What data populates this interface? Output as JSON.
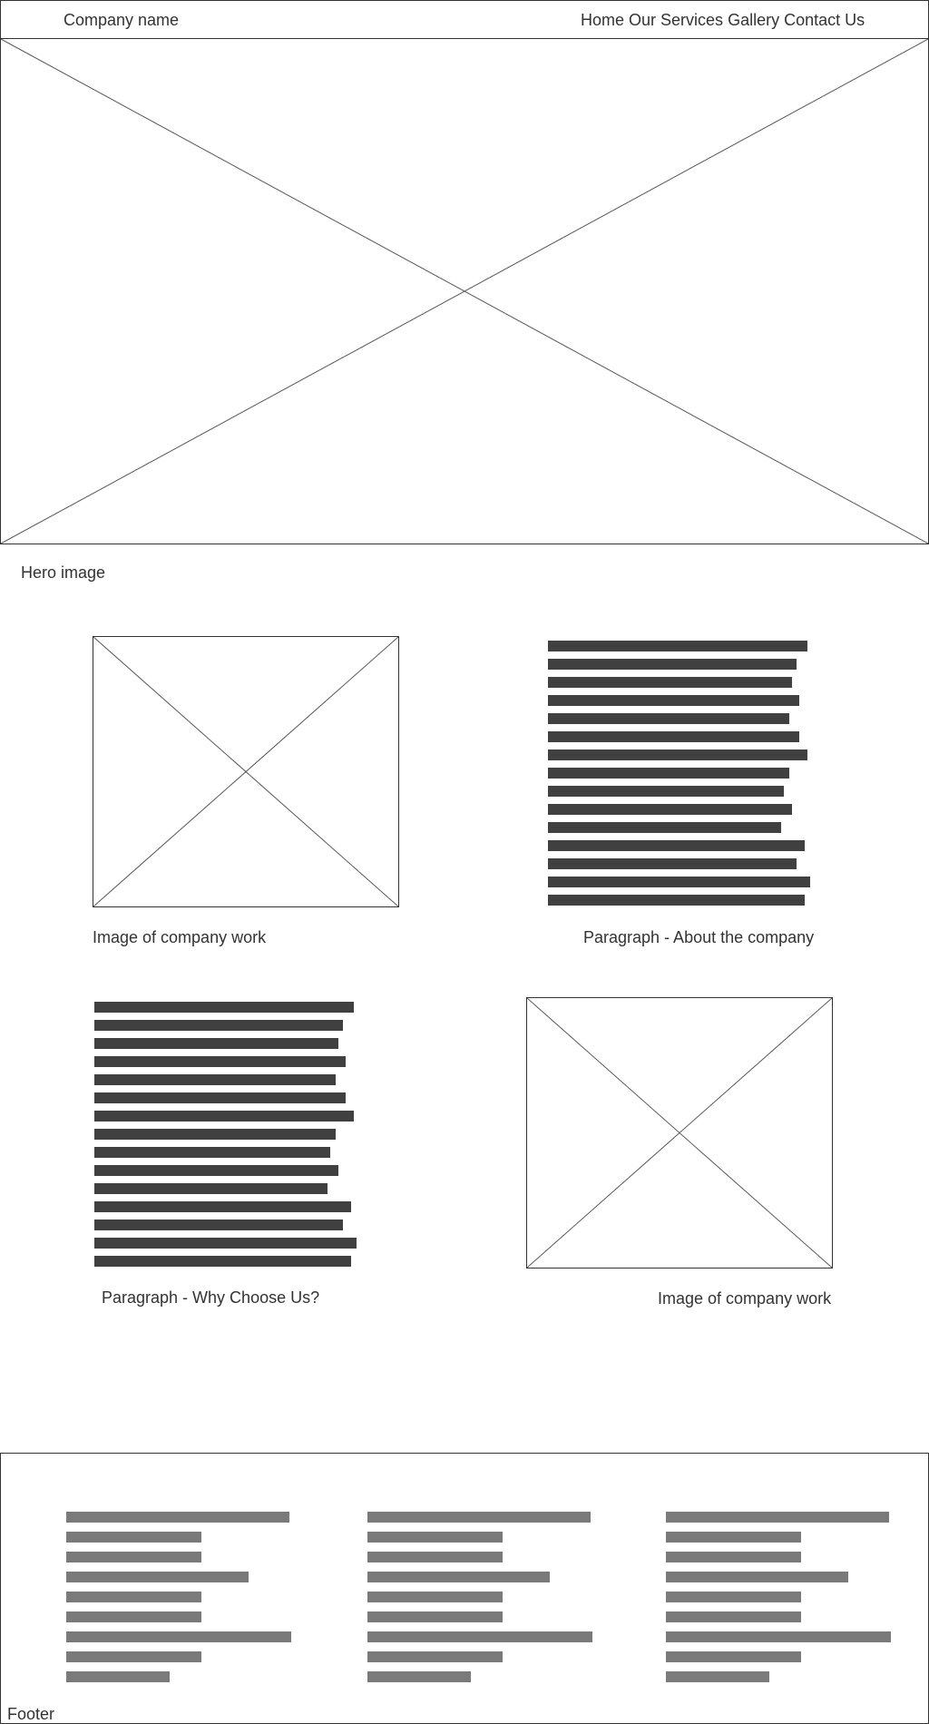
{
  "header": {
    "company_name": "Company name",
    "nav": [
      "Home",
      "Our Services",
      "Gallery",
      "Contact Us"
    ]
  },
  "hero": {
    "label": "Hero image"
  },
  "section1": {
    "image_label": "Image of company work",
    "paragraph_label": "Paragraph - About the company",
    "paragraph_line_lengths": [
      0.98,
      0.94,
      0.92,
      0.95,
      0.91,
      0.95,
      0.98,
      0.91,
      0.89,
      0.92,
      0.88,
      0.97,
      0.94,
      0.99,
      0.97
    ]
  },
  "section2": {
    "paragraph_label": "Paragraph - Why Choose Us?",
    "image_label": "Image of company work",
    "paragraph_line_lengths": [
      0.98,
      0.94,
      0.92,
      0.95,
      0.91,
      0.95,
      0.98,
      0.91,
      0.89,
      0.92,
      0.88,
      0.97,
      0.94,
      0.99,
      0.97
    ]
  },
  "footer": {
    "label": "Footer",
    "column_line_lengths": [
      0.99,
      0.6,
      0.6,
      0.81,
      0.6,
      0.6,
      1.0,
      0.6,
      0.46
    ]
  }
}
